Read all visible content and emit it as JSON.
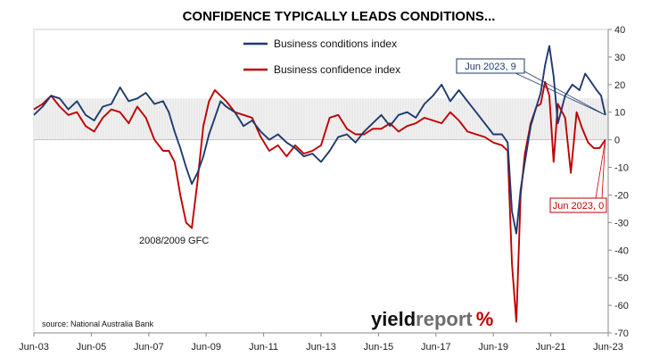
{
  "chart_data": {
    "type": "line",
    "title": "CONFIDENCE TYPICALLY LEADS CONDITIONS...",
    "xlabel": "",
    "ylabel": "",
    "x_tick_labels": [
      "Jun-03",
      "Jun-05",
      "Jun-07",
      "Jun-09",
      "Jun-11",
      "Jun-13",
      "Jun-15",
      "Jun-17",
      "Jun-19",
      "Jun-21",
      "Jun-23"
    ],
    "x_tick_years": [
      2003.5,
      2005.5,
      2007.5,
      2009.5,
      2011.5,
      2013.5,
      2015.5,
      2017.5,
      2019.5,
      2021.5,
      2023.5
    ],
    "xlim": [
      2003.5,
      2023.5
    ],
    "ylim": [
      -70,
      40
    ],
    "y_ticks": [
      40,
      30,
      20,
      10,
      0,
      -10,
      -20,
      -30,
      -40,
      -50,
      -60,
      -70
    ],
    "grid": false,
    "legend_position": "top-center",
    "shaded_band": [
      0,
      15
    ],
    "series": [
      {
        "name": "Business conditions index",
        "color": "#1f3a6e",
        "points": [
          [
            2003.5,
            9
          ],
          [
            2003.8,
            12
          ],
          [
            2004.1,
            16
          ],
          [
            2004.4,
            15
          ],
          [
            2004.7,
            11
          ],
          [
            2005.0,
            14
          ],
          [
            2005.3,
            9
          ],
          [
            2005.6,
            7
          ],
          [
            2005.9,
            12
          ],
          [
            2006.2,
            13
          ],
          [
            2006.5,
            19
          ],
          [
            2006.8,
            14
          ],
          [
            2007.1,
            15
          ],
          [
            2007.4,
            17
          ],
          [
            2007.7,
            13
          ],
          [
            2008.0,
            14
          ],
          [
            2008.2,
            10
          ],
          [
            2008.4,
            3
          ],
          [
            2008.6,
            -3
          ],
          [
            2008.8,
            -10
          ],
          [
            2009.0,
            -16
          ],
          [
            2009.2,
            -12
          ],
          [
            2009.4,
            -6
          ],
          [
            2009.6,
            2
          ],
          [
            2009.8,
            8
          ],
          [
            2010.0,
            14
          ],
          [
            2010.2,
            12
          ],
          [
            2010.5,
            10
          ],
          [
            2010.8,
            5
          ],
          [
            2011.1,
            7
          ],
          [
            2011.4,
            3
          ],
          [
            2011.7,
            0
          ],
          [
            2012.0,
            2
          ],
          [
            2012.3,
            -1
          ],
          [
            2012.6,
            -3
          ],
          [
            2012.9,
            -6
          ],
          [
            2013.2,
            -5
          ],
          [
            2013.5,
            -8
          ],
          [
            2013.8,
            -4
          ],
          [
            2014.1,
            1
          ],
          [
            2014.4,
            2
          ],
          [
            2014.7,
            -1
          ],
          [
            2015.0,
            3
          ],
          [
            2015.3,
            6
          ],
          [
            2015.6,
            9
          ],
          [
            2015.9,
            5
          ],
          [
            2016.2,
            9
          ],
          [
            2016.5,
            10
          ],
          [
            2016.8,
            8
          ],
          [
            2017.1,
            13
          ],
          [
            2017.4,
            16
          ],
          [
            2017.7,
            20
          ],
          [
            2018.0,
            14
          ],
          [
            2018.3,
            18
          ],
          [
            2018.6,
            14
          ],
          [
            2018.9,
            10
          ],
          [
            2019.2,
            6
          ],
          [
            2019.5,
            2
          ],
          [
            2019.8,
            2
          ],
          [
            2020.0,
            -1
          ],
          [
            2020.15,
            -26
          ],
          [
            2020.3,
            -34
          ],
          [
            2020.45,
            -18
          ],
          [
            2020.6,
            -8
          ],
          [
            2020.8,
            5
          ],
          [
            2021.0,
            12
          ],
          [
            2021.15,
            17
          ],
          [
            2021.3,
            27
          ],
          [
            2021.45,
            34
          ],
          [
            2021.6,
            23
          ],
          [
            2021.75,
            6
          ],
          [
            2022.0,
            16
          ],
          [
            2022.25,
            20
          ],
          [
            2022.5,
            18
          ],
          [
            2022.7,
            24
          ],
          [
            2022.9,
            21
          ],
          [
            2023.1,
            18
          ],
          [
            2023.25,
            16
          ],
          [
            2023.4,
            9
          ]
        ]
      },
      {
        "name": "Business confidence index",
        "color": "#c00000",
        "points": [
          [
            2003.5,
            11
          ],
          [
            2003.8,
            13
          ],
          [
            2004.1,
            16
          ],
          [
            2004.4,
            12
          ],
          [
            2004.7,
            9
          ],
          [
            2005.0,
            10
          ],
          [
            2005.3,
            5
          ],
          [
            2005.6,
            3
          ],
          [
            2005.9,
            8
          ],
          [
            2006.2,
            11
          ],
          [
            2006.5,
            10
          ],
          [
            2006.8,
            6
          ],
          [
            2007.1,
            12
          ],
          [
            2007.4,
            8
          ],
          [
            2007.7,
            0
          ],
          [
            2008.0,
            -4
          ],
          [
            2008.2,
            -4
          ],
          [
            2008.4,
            -8
          ],
          [
            2008.6,
            -20
          ],
          [
            2008.8,
            -30
          ],
          [
            2009.0,
            -32
          ],
          [
            2009.2,
            -15
          ],
          [
            2009.4,
            5
          ],
          [
            2009.6,
            14
          ],
          [
            2009.8,
            18
          ],
          [
            2010.0,
            16
          ],
          [
            2010.2,
            14
          ],
          [
            2010.5,
            10
          ],
          [
            2010.8,
            9
          ],
          [
            2011.1,
            8
          ],
          [
            2011.4,
            1
          ],
          [
            2011.7,
            -4
          ],
          [
            2012.0,
            -2
          ],
          [
            2012.3,
            -6
          ],
          [
            2012.6,
            -2
          ],
          [
            2012.9,
            -5
          ],
          [
            2013.2,
            -4
          ],
          [
            2013.5,
            -2
          ],
          [
            2013.8,
            8
          ],
          [
            2014.1,
            9
          ],
          [
            2014.4,
            4
          ],
          [
            2014.7,
            2
          ],
          [
            2015.0,
            2
          ],
          [
            2015.3,
            4
          ],
          [
            2015.6,
            4
          ],
          [
            2015.9,
            6
          ],
          [
            2016.2,
            3
          ],
          [
            2016.5,
            5
          ],
          [
            2016.8,
            6
          ],
          [
            2017.1,
            8
          ],
          [
            2017.4,
            7
          ],
          [
            2017.7,
            6
          ],
          [
            2018.0,
            10
          ],
          [
            2018.3,
            7
          ],
          [
            2018.6,
            3
          ],
          [
            2018.9,
            2
          ],
          [
            2019.2,
            1
          ],
          [
            2019.5,
            -1
          ],
          [
            2019.8,
            -2
          ],
          [
            2020.0,
            -4
          ],
          [
            2020.15,
            -45
          ],
          [
            2020.3,
            -66
          ],
          [
            2020.45,
            -20
          ],
          [
            2020.6,
            -5
          ],
          [
            2020.8,
            6
          ],
          [
            2021.0,
            12
          ],
          [
            2021.15,
            13
          ],
          [
            2021.3,
            21
          ],
          [
            2021.45,
            16
          ],
          [
            2021.6,
            -8
          ],
          [
            2021.75,
            13
          ],
          [
            2022.0,
            8
          ],
          [
            2022.2,
            -12
          ],
          [
            2022.4,
            10
          ],
          [
            2022.6,
            4
          ],
          [
            2022.8,
            -1
          ],
          [
            2023.0,
            -3
          ],
          [
            2023.2,
            -3
          ],
          [
            2023.4,
            0
          ]
        ]
      }
    ],
    "annotations": [
      {
        "text": "Jun 2023, 9",
        "color": "#1f3a6e"
      },
      {
        "text": "Jun 2023, 0",
        "color": "#c00000"
      },
      {
        "text": "2008/2009 GFC",
        "color": "#111111"
      }
    ],
    "source": "source: National Australia Bank"
  },
  "logo": {
    "part1": "yield",
    "part2": "report",
    "part3": "%"
  }
}
